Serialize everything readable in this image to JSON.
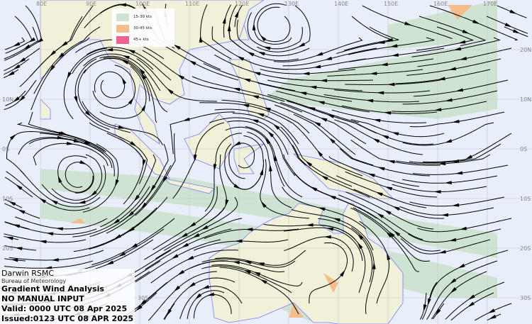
{
  "colors": {
    "ocean": "#e9eefb",
    "land": "#f1f0d9",
    "coast": "#7b7bff",
    "band_15_30": "#cfe3d3",
    "band_30_45": "#f6bd8c",
    "band_45_plus": "#f0628f",
    "streamline": "#000000"
  },
  "legend": {
    "items": [
      {
        "label": "15-30 kts",
        "color": "#cfe3d3"
      },
      {
        "label": "30-45 kts",
        "color": "#f6bd8c"
      },
      {
        "label": "45+ kts",
        "color": "#f0628f"
      }
    ]
  },
  "grid": {
    "longitude_labels": [
      "80E",
      "90E",
      "100E",
      "110E",
      "120E",
      "130E",
      "140E",
      "150E",
      "160E",
      "170E"
    ],
    "latitude_labels_left": [
      "10N",
      "0S",
      "10S",
      "20S",
      "30S"
    ],
    "latitude_labels_right": [
      "20N",
      "10N",
      "0S",
      "10S",
      "20S",
      "30S"
    ]
  },
  "info": {
    "office": "Darwin RSMC",
    "agency": "Bureau of Meteorology",
    "product": "Gradient Wind Analysis",
    "note": "NO MANUAL INPUT",
    "valid": "Valid:   0000 UTC 08 Apr 2025",
    "issued": "Issued:0123 UTC 08 APR 2025"
  }
}
